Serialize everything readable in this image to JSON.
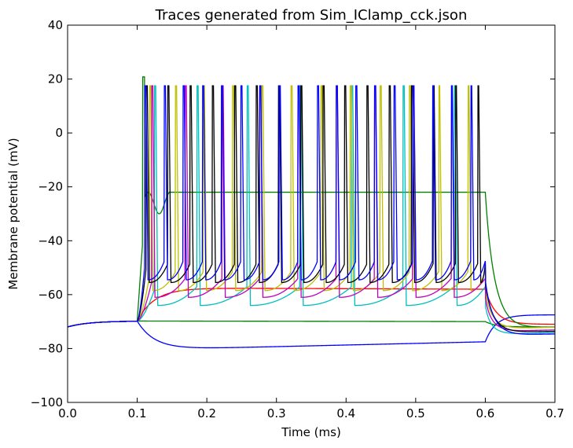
{
  "chart_data": {
    "type": "line",
    "title": "Traces generated from Sim_IClamp_cck.json",
    "xlabel": "Time (ms)",
    "ylabel": "Membrane potential (mV)",
    "xlim": [
      0.0,
      0.7
    ],
    "ylim": [
      -100,
      40
    ],
    "xticks": [
      "0.0",
      "0.1",
      "0.2",
      "0.3",
      "0.4",
      "0.5",
      "0.6",
      "0.7"
    ],
    "yticks": [
      "−100",
      "−80",
      "−60",
      "−40",
      "−20",
      "0",
      "20",
      "40"
    ],
    "grid": false,
    "legend": "none",
    "stim_start": 0.1,
    "stim_end": 0.6,
    "rest_potential": -72,
    "series": [
      {
        "color": "#0000ff",
        "kind": "subthreshold",
        "plateau": -80.5,
        "end_value": -77.5,
        "post": -67.5
      },
      {
        "color": "#008000",
        "kind": "subthreshold",
        "plateau": -69.8,
        "end_value": -70.0,
        "post": -72.0
      },
      {
        "color": "#ff0000",
        "kind": "subthreshold",
        "plateau": -57.5,
        "end_value": -58.0,
        "post": -71.0
      },
      {
        "color": "#008000",
        "kind": "depolarization_block",
        "plateau": -22.0,
        "spike_times": [
          0.108,
          0.146
        ],
        "peak": 20.8,
        "post": -72.0
      },
      {
        "color": "#00bfbf",
        "kind": "spiking",
        "peak": 17.5,
        "trough": -64.0,
        "spike_times": [
          0.125,
          0.186,
          0.258,
          0.334,
          0.408,
          0.482,
          0.555
        ],
        "post": -74.0
      },
      {
        "color": "#bfbf00",
        "kind": "spiking",
        "peak": 17.5,
        "trough": -58.5,
        "spike_times": [
          0.118,
          0.155,
          0.195,
          0.237,
          0.279,
          0.321,
          0.364,
          0.406,
          0.449,
          0.491,
          0.533,
          0.575
        ],
        "post": -72.0
      },
      {
        "color": "#bf00bf",
        "kind": "spiking",
        "peak": 17.5,
        "trough": -61.0,
        "spike_times": [
          0.121,
          0.169,
          0.222,
          0.276,
          0.331,
          0.386,
          0.441,
          0.496,
          0.551
        ],
        "post": -73.0
      },
      {
        "color": "#000000",
        "kind": "spiking",
        "peak": 17.5,
        "trough": -55.5,
        "spike_times": [
          0.113,
          0.144,
          0.176,
          0.208,
          0.24,
          0.271,
          0.303,
          0.335,
          0.367,
          0.398,
          0.43,
          0.462,
          0.494,
          0.525,
          0.557,
          0.589
        ],
        "post": -73.5
      },
      {
        "color": "#0000ff",
        "kind": "spiking",
        "peak": 17.5,
        "trough": -54.5,
        "spike_times": [
          0.111,
          0.139,
          0.166,
          0.194,
          0.221,
          0.249,
          0.276,
          0.304,
          0.331,
          0.359,
          0.386,
          0.414,
          0.441,
          0.469,
          0.496,
          0.524,
          0.551,
          0.579
        ],
        "post": -74.5
      }
    ]
  }
}
